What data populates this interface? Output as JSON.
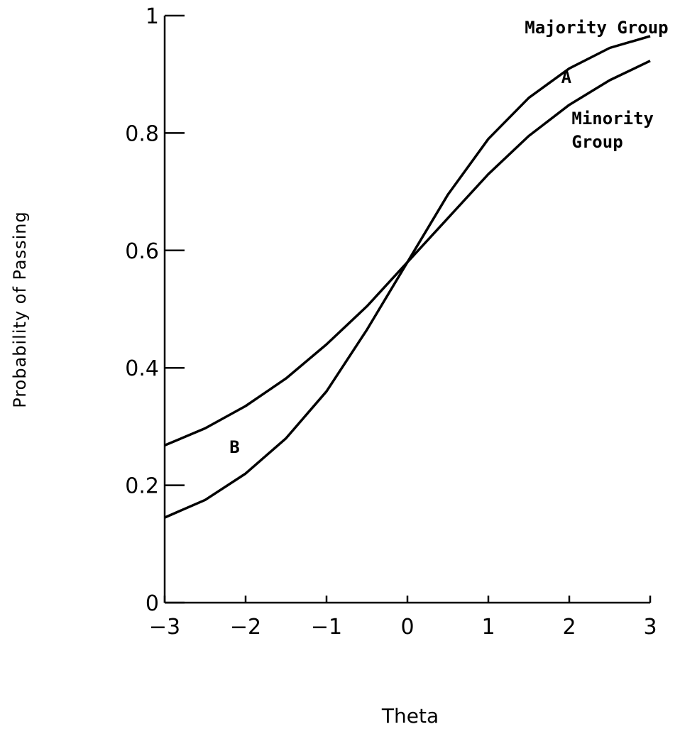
{
  "chart_data": {
    "type": "line",
    "title": "",
    "xlabel": "Theta",
    "ylabel": "Probability of Passing",
    "xlim": [
      -3,
      3
    ],
    "ylim": [
      0,
      1
    ],
    "x_ticks": [
      "-3",
      "-2",
      "-1",
      "0",
      "1",
      "2",
      "3"
    ],
    "y_ticks": [
      "0",
      "0.2",
      "0.4",
      "0.6",
      "0.8",
      "1"
    ],
    "grid": false,
    "legend": "none",
    "series": [
      {
        "name": "Majority Group",
        "x": [
          -3,
          -2.5,
          -2,
          -1.5,
          -1,
          -0.5,
          0,
          0.5,
          1,
          1.5,
          2,
          2.5,
          3
        ],
        "y": [
          0.145,
          0.175,
          0.22,
          0.28,
          0.36,
          0.465,
          0.58,
          0.695,
          0.79,
          0.86,
          0.91,
          0.945,
          0.965
        ]
      },
      {
        "name": "Minority Group",
        "x": [
          -3,
          -2.5,
          -2,
          -1.5,
          -1,
          -0.5,
          0,
          0.5,
          1,
          1.5,
          2,
          2.5,
          3
        ],
        "y": [
          0.268,
          0.297,
          0.335,
          0.382,
          0.44,
          0.505,
          0.58,
          0.655,
          0.73,
          0.795,
          0.848,
          0.89,
          0.923
        ]
      }
    ],
    "annotations": [
      {
        "text": "Majority Group",
        "x": 1.45,
        "y": 0.97
      },
      {
        "text": "A",
        "x": 1.9,
        "y": 0.885
      },
      {
        "text": "Minority",
        "x": 2.03,
        "y": 0.815
      },
      {
        "text": "Group",
        "x": 2.03,
        "y": 0.775
      },
      {
        "text": "B",
        "x": -2.2,
        "y": 0.255
      }
    ]
  }
}
